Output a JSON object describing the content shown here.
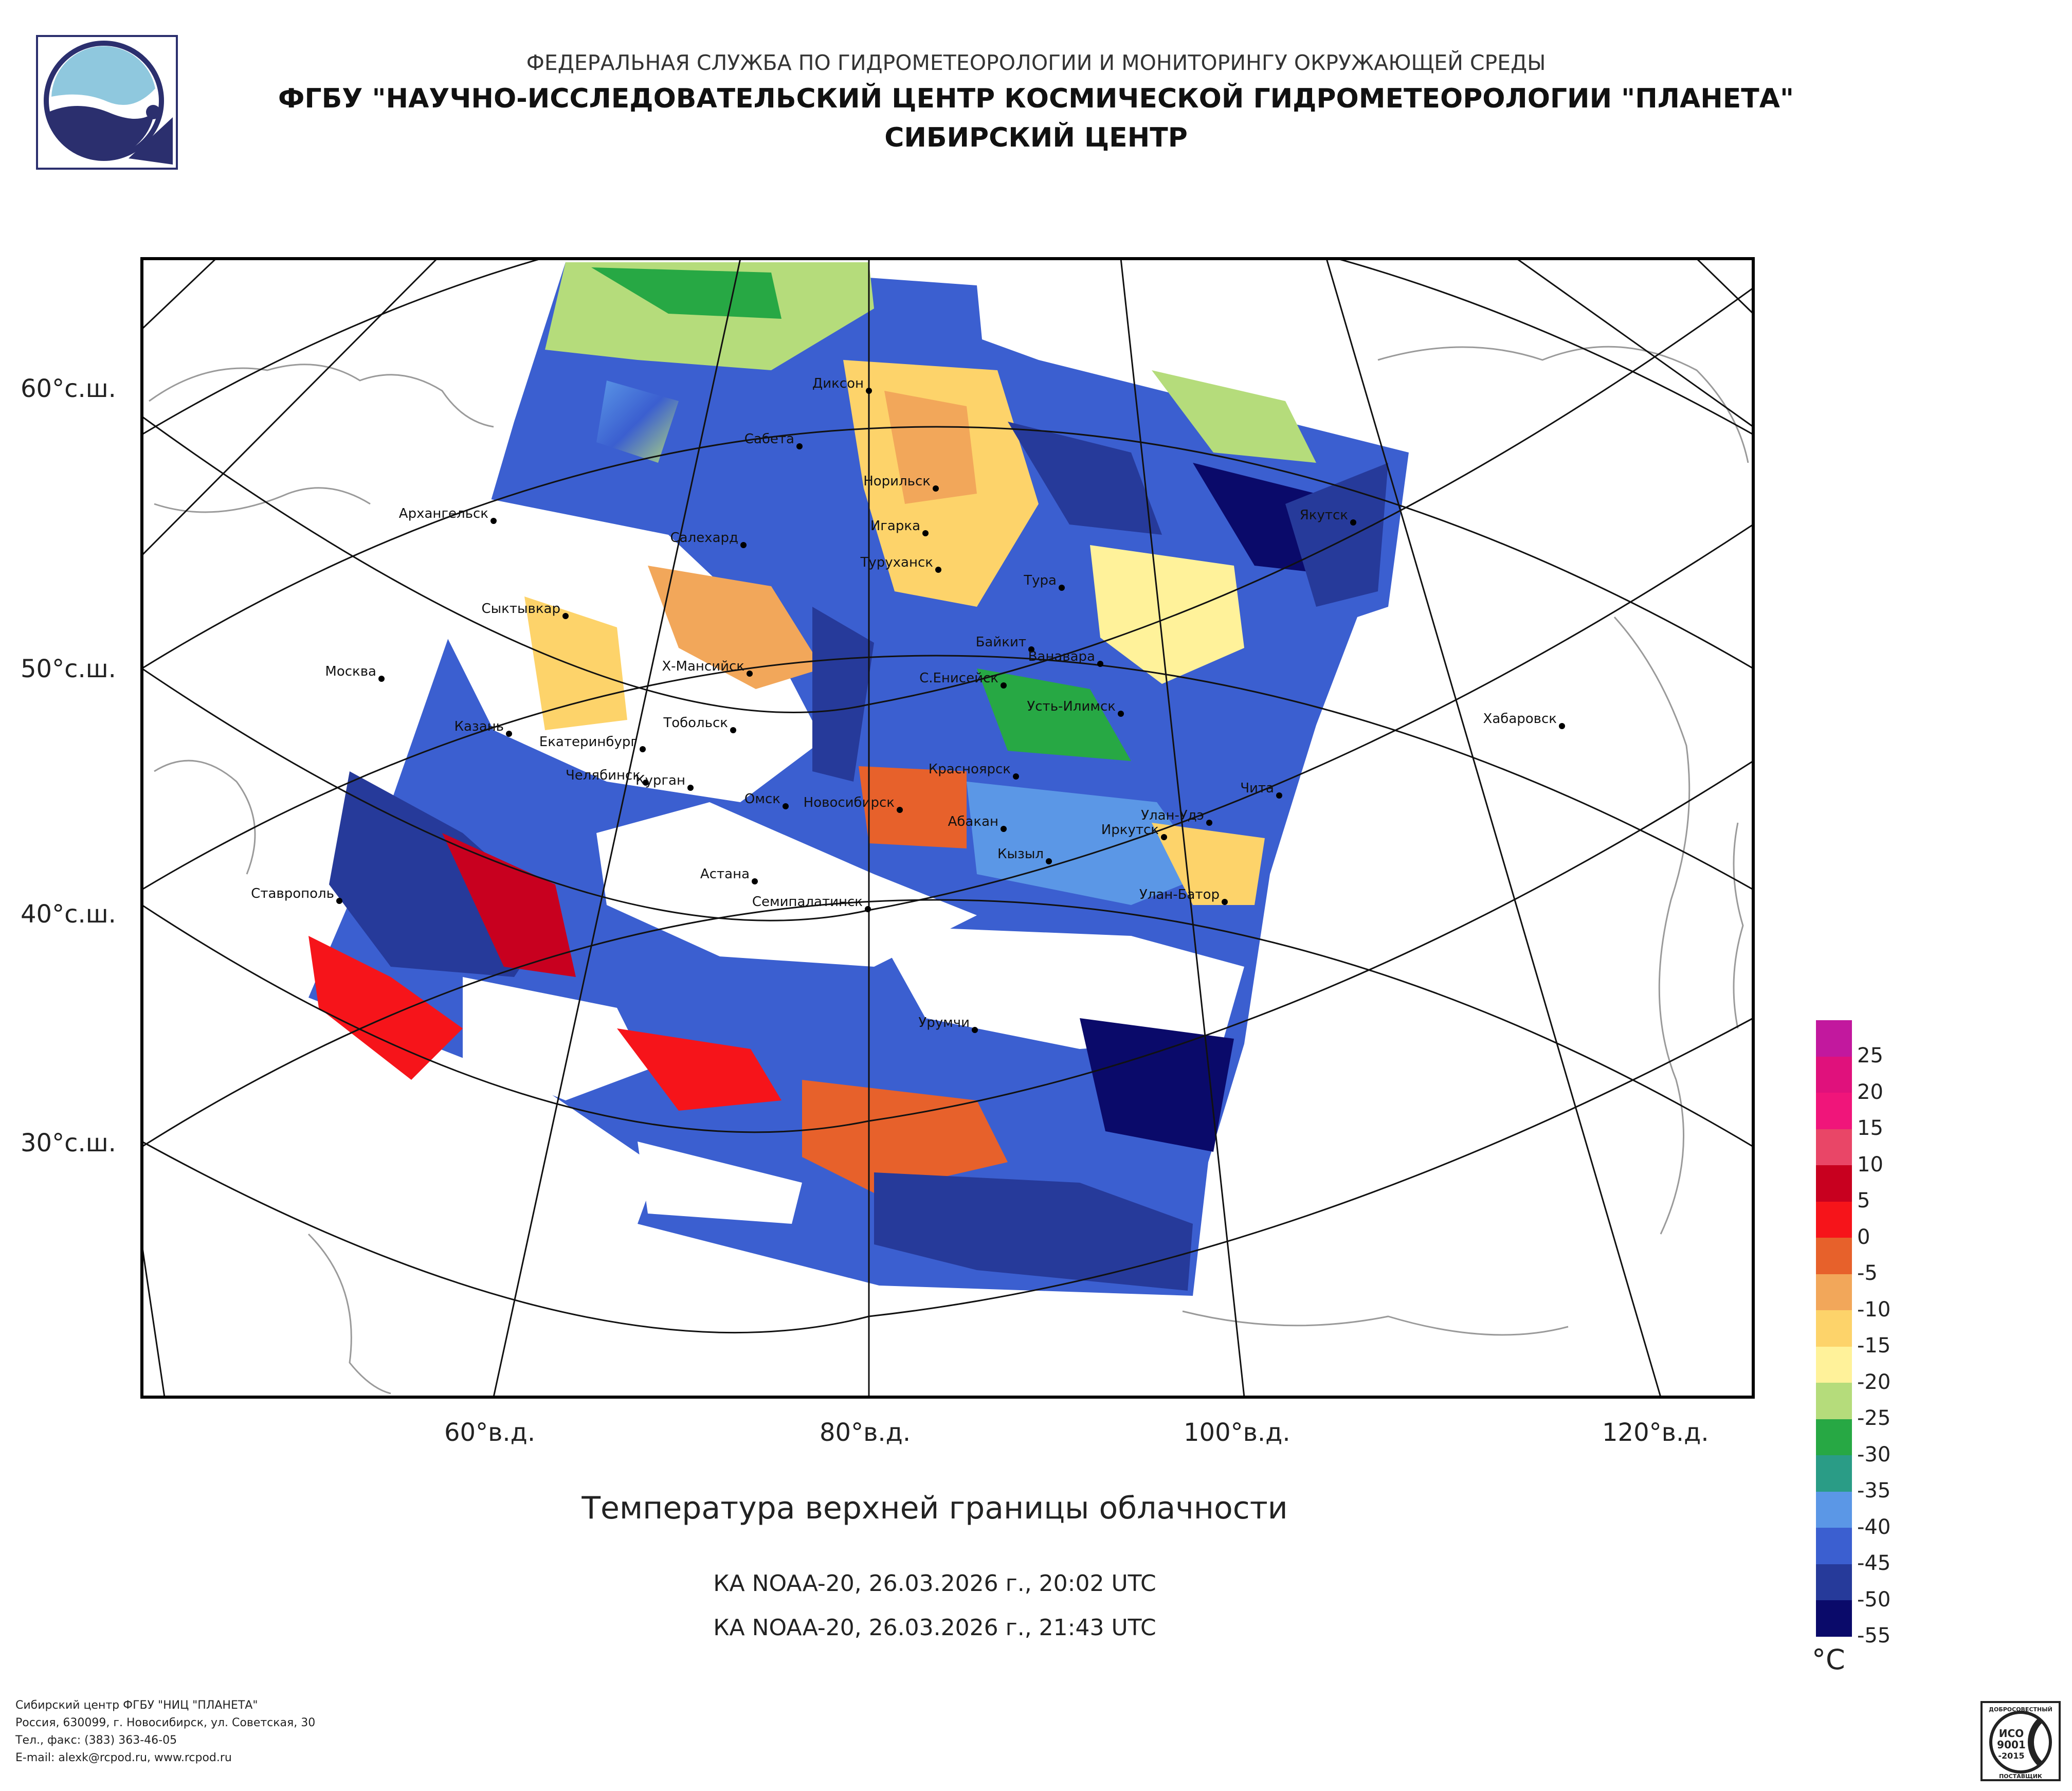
{
  "header": {
    "line1": "ФЕДЕРАЛЬНАЯ СЛУЖБА ПО ГИДРОМЕТЕОРОЛОГИИ И МОНИТОРИНГУ ОКРУЖАЮЩЕЙ СРЕДЫ",
    "line2": "ФГБУ \"НАУЧНО-ИССЛЕДОВАТЕЛЬСКИЙ ЦЕНТР КОСМИЧЕСКОЙ ГИДРОМЕТЕОРОЛОГИИ \"ПЛАНЕТА\"",
    "line3": "СИБИРСКИЙ ЦЕНТР"
  },
  "map": {
    "latitude_labels": [
      "60°с.ш.",
      "50°с.ш.",
      "40°с.ш.",
      "30°с.ш."
    ],
    "longitude_labels": [
      "60°в.д.",
      "80°в.д.",
      "100°в.д.",
      "120°в.д."
    ],
    "cities": [
      {
        "name": "Диксон"
      },
      {
        "name": "Сабета"
      },
      {
        "name": "Норильск"
      },
      {
        "name": "Игарка"
      },
      {
        "name": "Туруханск"
      },
      {
        "name": "Архангельск"
      },
      {
        "name": "Салехард"
      },
      {
        "name": "Якутск"
      },
      {
        "name": "Тура"
      },
      {
        "name": "Сыктывкар"
      },
      {
        "name": "Байкит"
      },
      {
        "name": "Ванавара"
      },
      {
        "name": "Москва"
      },
      {
        "name": "Х-Мансийск"
      },
      {
        "name": "С.Енисейск"
      },
      {
        "name": "Усть-Илимск"
      },
      {
        "name": "Хабаровск"
      },
      {
        "name": "Казань"
      },
      {
        "name": "Тобольск"
      },
      {
        "name": "Екатеринбург"
      },
      {
        "name": "Красноярск"
      },
      {
        "name": "Челябинск"
      },
      {
        "name": "Чита"
      },
      {
        "name": "Курган"
      },
      {
        "name": "Омск"
      },
      {
        "name": "Новосибирск"
      },
      {
        "name": "Улан-Удэ"
      },
      {
        "name": "Абакан"
      },
      {
        "name": "Иркутск"
      },
      {
        "name": "Кызыл"
      },
      {
        "name": "Астана"
      },
      {
        "name": "Ставрополь"
      },
      {
        "name": "Улан-Батор"
      },
      {
        "name": "Семипалатинск"
      },
      {
        "name": "Урумчи"
      }
    ]
  },
  "caption": "Температура верхней границы облачности",
  "passes": [
    "КА NOAA-20, 26.03.2026 г., 20:02 UTC",
    "КА NOAA-20, 26.03.2026 г., 21:43 UTC"
  ],
  "legend": {
    "unit": "°C",
    "labels": [
      "25",
      "20",
      "15",
      "10",
      "5",
      "0",
      "-5",
      "-10",
      "-15",
      "-20",
      "-25",
      "-30",
      "-35",
      "-40",
      "-45",
      "-50",
      "-55"
    ],
    "colors": [
      "#c2189e",
      "#e0117c",
      "#f0157a",
      "#e94667",
      "#c8001f",
      "#f6141a",
      "#e7612b",
      "#f2a75a",
      "#fdd36a",
      "#fff29a",
      "#b5dc7b",
      "#27a844",
      "#2a9c86",
      "#5b97e6",
      "#3b5fd0",
      "#263a9a",
      "#0a0a6a"
    ]
  },
  "footer": {
    "line1": "Сибирский центр ФГБУ \"НИЦ \"ПЛАНЕТА\"",
    "line2": "Россия, 630099, г. Новосибирск, ул. Советская, 30",
    "line3": "Тел., факс: (383) 363-46-05",
    "line4": "E-mail: alexk@rcpod.ru, www.rcpod.ru"
  },
  "iso_badge": {
    "top_text": "ДОБРОСОВЕСТНЫЙ",
    "line1": "ИСО",
    "line2": "9001",
    "line3": "-2015",
    "bottom_text": "ПОСТАВЩИК"
  }
}
